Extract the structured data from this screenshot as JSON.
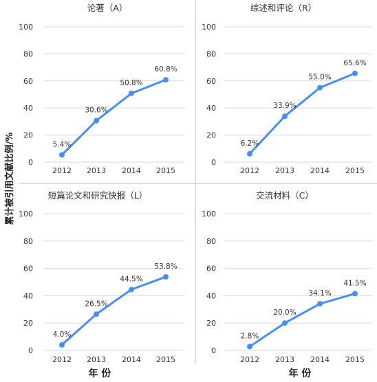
{
  "figure": {
    "ylabel": "累计被引用文献比例/%",
    "xlabel": "年 份"
  },
  "chart_data": [
    {
      "type": "line",
      "title": "论著（A）",
      "categories": [
        "2012",
        "2013",
        "2014",
        "2015"
      ],
      "series": [
        {
          "values": [
            5.4,
            30.6,
            50.8,
            60.8
          ]
        }
      ],
      "data_labels": [
        "5.4%",
        "30.6%",
        "50.8%",
        "60.8%"
      ],
      "yticks": [
        "0",
        "20",
        "40",
        "60",
        "80",
        "100"
      ],
      "ylim": [
        0,
        100
      ],
      "grid": true
    },
    {
      "type": "line",
      "title": "综述和评论（R）",
      "categories": [
        "2012",
        "2013",
        "2014",
        "2015"
      ],
      "series": [
        {
          "values": [
            6.2,
            33.9,
            55.0,
            65.6
          ]
        }
      ],
      "data_labels": [
        "6.2%",
        "33.9%",
        "55.0%",
        "65.6%"
      ],
      "yticks": [
        "0",
        "20",
        "40",
        "60",
        "80",
        "100"
      ],
      "ylim": [
        0,
        100
      ],
      "grid": true
    },
    {
      "type": "line",
      "title": "短篇论文和研究快报（L）",
      "categories": [
        "2012",
        "2013",
        "2014",
        "2015"
      ],
      "series": [
        {
          "values": [
            4.0,
            26.5,
            44.5,
            53.8
          ]
        }
      ],
      "data_labels": [
        "4.0%",
        "26.5%",
        "44.5%",
        "53.8%"
      ],
      "yticks": [
        "0",
        "20",
        "40",
        "60",
        "80",
        "100"
      ],
      "ylim": [
        0,
        100
      ],
      "grid": true
    },
    {
      "type": "line",
      "title": "交流材料（C）",
      "categories": [
        "2012",
        "2013",
        "2014",
        "2015"
      ],
      "series": [
        {
          "values": [
            2.8,
            20.0,
            34.1,
            41.5
          ]
        }
      ],
      "data_labels": [
        "2.8%",
        "20.0%",
        "34.1%",
        "41.5%"
      ],
      "yticks": [
        "0",
        "20",
        "40",
        "60",
        "80",
        "100"
      ],
      "ylim": [
        0,
        100
      ],
      "grid": true
    }
  ],
  "colors": {
    "line": "#4a8ee8",
    "grid": "#d9d9d9",
    "divider": "#c8c8c8",
    "text": "#333333"
  }
}
